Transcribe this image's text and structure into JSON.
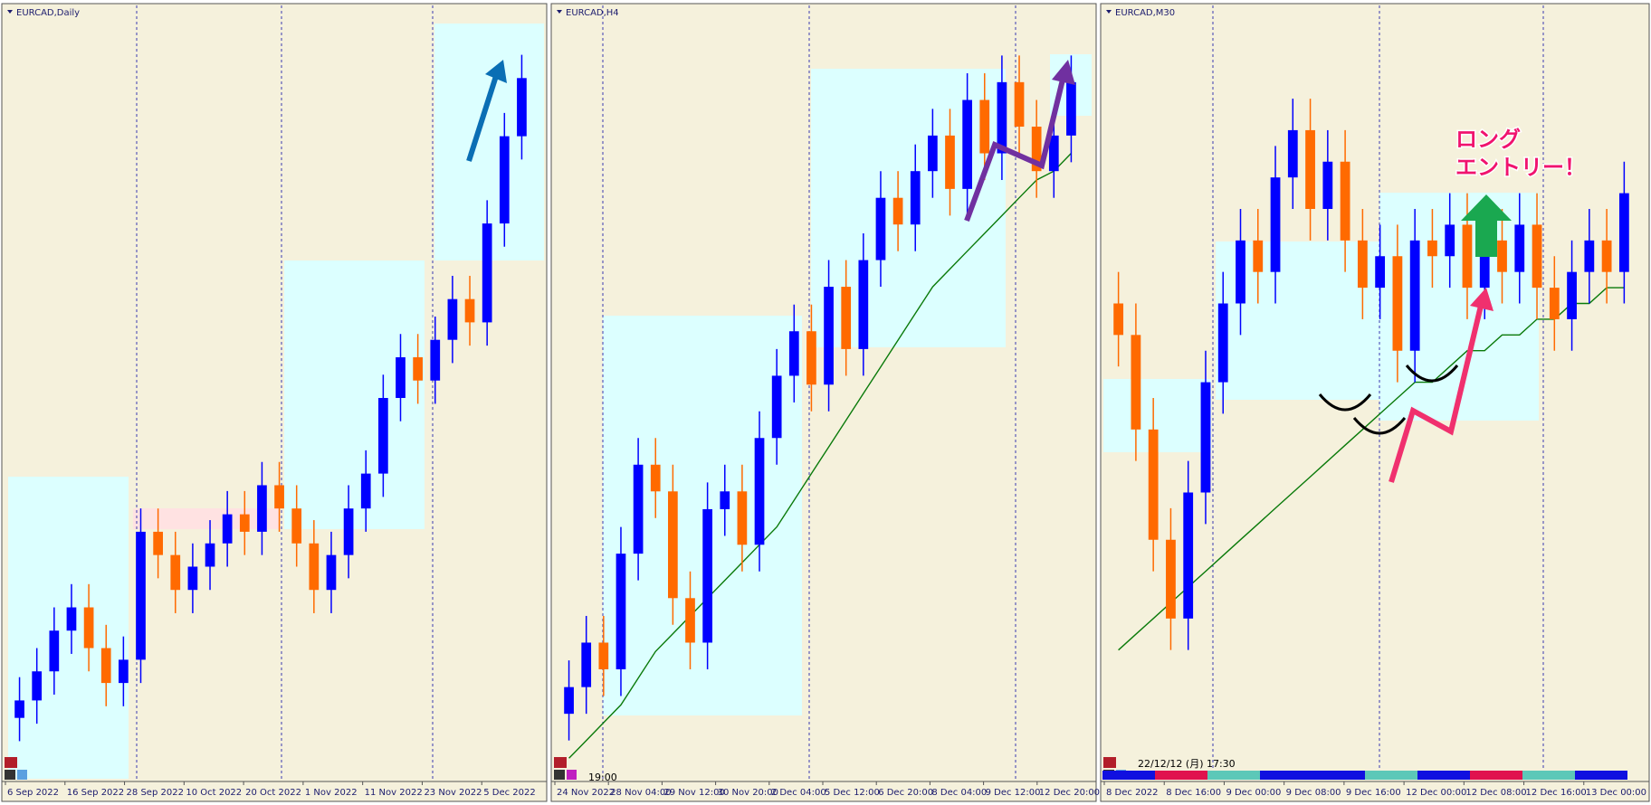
{
  "chart_data": [
    {
      "type": "candlestick",
      "title": "EURCAD,Daily",
      "x_labels": [
        "6 Sep 2022",
        "16 Sep 2022",
        "28 Sep 2022",
        "10 Oct 2022",
        "20 Oct 2022",
        "1 Nov 2022",
        "11 Nov 2022",
        "23 Nov 2022",
        "5 Dec 2022"
      ],
      "open": [
        1.33,
        1.333,
        1.338,
        1.345,
        1.349,
        1.342,
        1.336,
        1.34,
        1.362,
        1.358,
        1.352,
        1.356,
        1.36,
        1.365,
        1.362,
        1.37,
        1.366,
        1.36,
        1.352,
        1.358,
        1.366,
        1.372,
        1.385,
        1.392,
        1.388,
        1.395,
        1.402,
        1.398,
        1.415,
        1.43
      ],
      "high": [
        1.337,
        1.342,
        1.349,
        1.353,
        1.353,
        1.346,
        1.344,
        1.366,
        1.366,
        1.362,
        1.36,
        1.364,
        1.369,
        1.369,
        1.374,
        1.374,
        1.37,
        1.364,
        1.362,
        1.37,
        1.376,
        1.389,
        1.396,
        1.396,
        1.399,
        1.406,
        1.406,
        1.419,
        1.434,
        1.444
      ],
      "low": [
        1.326,
        1.329,
        1.334,
        1.341,
        1.338,
        1.332,
        1.332,
        1.336,
        1.354,
        1.348,
        1.348,
        1.352,
        1.356,
        1.358,
        1.358,
        1.362,
        1.356,
        1.348,
        1.348,
        1.354,
        1.362,
        1.368,
        1.381,
        1.384,
        1.384,
        1.391,
        1.394,
        1.394,
        1.411,
        1.426
      ],
      "close": [
        1.333,
        1.338,
        1.345,
        1.349,
        1.342,
        1.336,
        1.34,
        1.362,
        1.358,
        1.352,
        1.356,
        1.36,
        1.365,
        1.362,
        1.37,
        1.366,
        1.36,
        1.352,
        1.358,
        1.366,
        1.372,
        1.385,
        1.392,
        1.388,
        1.395,
        1.402,
        1.398,
        1.415,
        1.43,
        1.44
      ],
      "ylim": [
        1.32,
        1.45
      ],
      "up_color": "#0000ff",
      "down_color": "#ff6a00"
    },
    {
      "type": "candlestick",
      "title": "EURCAD,H4",
      "x_labels": [
        "24 Nov 2022",
        "28 Nov 04:00",
        "29 Nov 12:00",
        "30 Nov 20:00",
        "2 Dec 04:00",
        "5 Dec 12:00",
        "6 Dec 20:00",
        "8 Dec 04:00",
        "9 Dec 12:00",
        "12 Dec 20:00"
      ],
      "open": [
        1.367,
        1.37,
        1.375,
        1.372,
        1.385,
        1.395,
        1.392,
        1.38,
        1.375,
        1.39,
        1.392,
        1.386,
        1.398,
        1.405,
        1.41,
        1.404,
        1.415,
        1.408,
        1.418,
        1.425,
        1.422,
        1.428,
        1.432,
        1.426,
        1.436,
        1.43,
        1.438,
        1.433,
        1.428,
        1.432
      ],
      "high": [
        1.373,
        1.378,
        1.378,
        1.388,
        1.398,
        1.398,
        1.395,
        1.383,
        1.393,
        1.395,
        1.395,
        1.401,
        1.408,
        1.413,
        1.413,
        1.418,
        1.418,
        1.421,
        1.428,
        1.428,
        1.431,
        1.435,
        1.435,
        1.439,
        1.439,
        1.441,
        1.441,
        1.436,
        1.435,
        1.441
      ],
      "low": [
        1.364,
        1.367,
        1.369,
        1.369,
        1.382,
        1.389,
        1.377,
        1.372,
        1.372,
        1.387,
        1.383,
        1.383,
        1.395,
        1.402,
        1.401,
        1.401,
        1.405,
        1.405,
        1.415,
        1.419,
        1.419,
        1.425,
        1.423,
        1.423,
        1.427,
        1.427,
        1.43,
        1.425,
        1.425,
        1.429
      ],
      "close": [
        1.37,
        1.375,
        1.372,
        1.385,
        1.395,
        1.392,
        1.38,
        1.375,
        1.39,
        1.392,
        1.386,
        1.398,
        1.405,
        1.41,
        1.404,
        1.415,
        1.408,
        1.418,
        1.425,
        1.422,
        1.428,
        1.432,
        1.426,
        1.436,
        1.43,
        1.438,
        1.433,
        1.428,
        1.432,
        1.438
      ],
      "ma": [
        1.362,
        1.364,
        1.366,
        1.368,
        1.371,
        1.374,
        1.376,
        1.378,
        1.38,
        1.382,
        1.384,
        1.386,
        1.388,
        1.391,
        1.394,
        1.397,
        1.4,
        1.403,
        1.406,
        1.409,
        1.412,
        1.415,
        1.417,
        1.419,
        1.421,
        1.423,
        1.425,
        1.427,
        1.428,
        1.43
      ],
      "ylim": [
        1.36,
        1.445
      ],
      "up_color": "#0000ff",
      "down_color": "#ff6a00",
      "ma_color": "#0a7a0a",
      "annotation": "19:00"
    },
    {
      "type": "candlestick",
      "title": "EURCAD,M30",
      "x_labels": [
        "8 Dec 2022",
        "8 Dec 16:00",
        "9 Dec 00:00",
        "9 Dec 08:00",
        "9 Dec 16:00",
        "12 Dec 00:00",
        "12 Dec 08:00",
        "12 Dec 16:00",
        "13 Dec 00:00"
      ],
      "open": [
        1.43,
        1.428,
        1.422,
        1.415,
        1.41,
        1.418,
        1.425,
        1.43,
        1.434,
        1.432,
        1.438,
        1.441,
        1.436,
        1.439,
        1.434,
        1.431,
        1.433,
        1.427,
        1.434,
        1.433,
        1.435,
        1.431,
        1.434,
        1.432,
        1.435,
        1.431,
        1.429,
        1.432,
        1.434,
        1.432
      ],
      "high": [
        1.432,
        1.43,
        1.424,
        1.417,
        1.42,
        1.427,
        1.432,
        1.436,
        1.436,
        1.44,
        1.443,
        1.443,
        1.441,
        1.441,
        1.436,
        1.435,
        1.435,
        1.436,
        1.436,
        1.437,
        1.437,
        1.436,
        1.436,
        1.437,
        1.437,
        1.433,
        1.434,
        1.436,
        1.436,
        1.439
      ],
      "low": [
        1.426,
        1.42,
        1.413,
        1.408,
        1.408,
        1.416,
        1.423,
        1.428,
        1.43,
        1.43,
        1.436,
        1.434,
        1.434,
        1.432,
        1.429,
        1.429,
        1.425,
        1.425,
        1.431,
        1.431,
        1.429,
        1.429,
        1.43,
        1.43,
        1.429,
        1.427,
        1.427,
        1.43,
        1.43,
        1.43
      ],
      "close": [
        1.428,
        1.422,
        1.415,
        1.41,
        1.418,
        1.425,
        1.43,
        1.434,
        1.432,
        1.438,
        1.441,
        1.436,
        1.439,
        1.434,
        1.431,
        1.433,
        1.427,
        1.434,
        1.433,
        1.435,
        1.431,
        1.434,
        1.432,
        1.435,
        1.431,
        1.429,
        1.432,
        1.434,
        1.432,
        1.437
      ],
      "ma": [
        1.408,
        1.409,
        1.41,
        1.411,
        1.412,
        1.413,
        1.414,
        1.415,
        1.416,
        1.417,
        1.418,
        1.419,
        1.42,
        1.421,
        1.422,
        1.423,
        1.424,
        1.425,
        1.425,
        1.426,
        1.427,
        1.427,
        1.428,
        1.428,
        1.429,
        1.429,
        1.43,
        1.43,
        1.431,
        1.431
      ],
      "ylim": [
        1.4,
        1.448
      ],
      "up_color": "#0000ff",
      "down_color": "#ff6a00",
      "ma_color": "#0a7a0a",
      "annotation": "22/12/12 (月) 17:30",
      "callout": [
        "ロング",
        "エントリー！"
      ]
    }
  ]
}
